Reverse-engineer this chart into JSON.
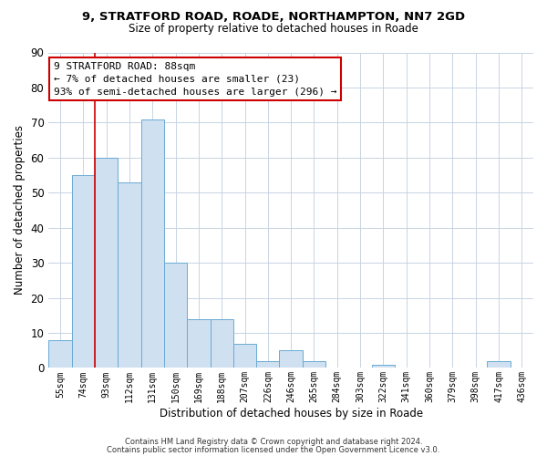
{
  "title_line1": "9, STRATFORD ROAD, ROADE, NORTHAMPTON, NN7 2GD",
  "title_line2": "Size of property relative to detached houses in Roade",
  "xlabel": "Distribution of detached houses by size in Roade",
  "ylabel": "Number of detached properties",
  "bin_labels": [
    "55sqm",
    "74sqm",
    "93sqm",
    "112sqm",
    "131sqm",
    "150sqm",
    "169sqm",
    "188sqm",
    "207sqm",
    "226sqm",
    "246sqm",
    "265sqm",
    "284sqm",
    "303sqm",
    "322sqm",
    "341sqm",
    "360sqm",
    "379sqm",
    "398sqm",
    "417sqm",
    "436sqm"
  ],
  "bar_heights": [
    8,
    55,
    60,
    53,
    71,
    30,
    14,
    14,
    7,
    2,
    5,
    2,
    0,
    0,
    1,
    0,
    0,
    0,
    0,
    2,
    0
  ],
  "bar_color": "#cfe0f0",
  "bar_edge_color": "#6aaad4",
  "ylim": [
    0,
    90
  ],
  "yticks": [
    0,
    10,
    20,
    30,
    40,
    50,
    60,
    70,
    80,
    90
  ],
  "vline_color": "#cc0000",
  "vline_x": 1.5,
  "annotation_title": "9 STRATFORD ROAD: 88sqm",
  "annotation_line2": "← 7% of detached houses are smaller (23)",
  "annotation_line3": "93% of semi-detached houses are larger (296) →",
  "annotation_box_color": "#ffffff",
  "annotation_border_color": "#cc0000",
  "footer_line1": "Contains HM Land Registry data © Crown copyright and database right 2024.",
  "footer_line2": "Contains public sector information licensed under the Open Government Licence v3.0.",
  "background_color": "#ffffff",
  "grid_color": "#c8d4e3"
}
